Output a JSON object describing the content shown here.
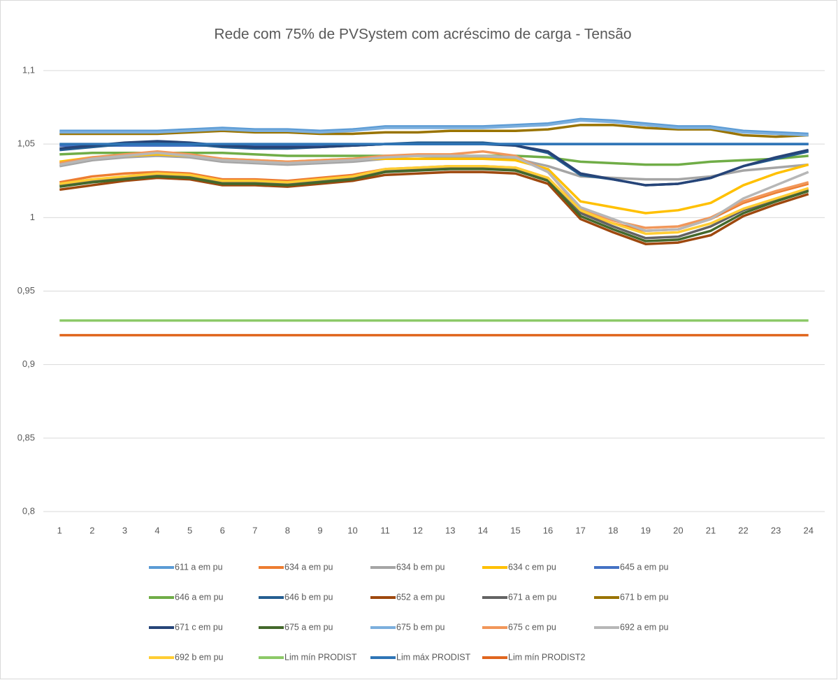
{
  "chart_data": {
    "type": "line",
    "title": "Rede com 75% de PVSystem com acréscimo de carga - Tensão",
    "categories": [
      1,
      2,
      3,
      4,
      5,
      6,
      7,
      8,
      9,
      10,
      11,
      12,
      13,
      14,
      15,
      16,
      17,
      18,
      19,
      20,
      21,
      22,
      23,
      24
    ],
    "ylim": [
      0.8,
      1.1
    ],
    "yticks": [
      {
        "value": 0.8,
        "label": "0,8"
      },
      {
        "value": 0.85,
        "label": "0,85"
      },
      {
        "value": 0.9,
        "label": "0,9"
      },
      {
        "value": 0.95,
        "label": "0,95"
      },
      1,
      {
        "value": 1.05,
        "label": "1,05"
      },
      {
        "value": 1.1,
        "label": "1,1"
      }
    ],
    "grid": true,
    "legend": "bottom",
    "series": [
      {
        "name": "611 a em pu",
        "color": "#5b9bd5",
        "values": [
          1.059,
          1.059,
          1.059,
          1.059,
          1.06,
          1.061,
          1.06,
          1.06,
          1.059,
          1.06,
          1.062,
          1.062,
          1.062,
          1.062,
          1.063,
          1.064,
          1.067,
          1.066,
          1.064,
          1.062,
          1.062,
          1.059,
          1.058,
          1.057
        ]
      },
      {
        "name": "634 a em pu",
        "color": "#ed7d31",
        "values": [
          1.024,
          1.028,
          1.03,
          1.031,
          1.03,
          1.026,
          1.026,
          1.025,
          1.027,
          1.029,
          1.033,
          1.034,
          1.035,
          1.035,
          1.034,
          1.027,
          1.004,
          0.996,
          0.991,
          0.992,
          0.999,
          1.01,
          1.017,
          1.023
        ]
      },
      {
        "name": "634 b em pu",
        "color": "#a5a5a5",
        "values": [
          1.035,
          1.039,
          1.041,
          1.042,
          1.041,
          1.038,
          1.037,
          1.036,
          1.037,
          1.038,
          1.04,
          1.04,
          1.041,
          1.041,
          1.04,
          1.035,
          1.028,
          1.027,
          1.026,
          1.026,
          1.028,
          1.032,
          1.034,
          1.036
        ]
      },
      {
        "name": "634 c em pu",
        "color": "#ffc000",
        "values": [
          1.038,
          1.041,
          1.042,
          1.043,
          1.042,
          1.04,
          1.039,
          1.038,
          1.039,
          1.04,
          1.04,
          1.04,
          1.04,
          1.04,
          1.039,
          1.033,
          1.011,
          1.007,
          1.003,
          1.005,
          1.01,
          1.022,
          1.03,
          1.036
        ]
      },
      {
        "name": "645 a em pu",
        "color": "#4472c4",
        "values": [
          1.049,
          1.049,
          1.049,
          1.049,
          1.049,
          1.049,
          1.049,
          1.049,
          1.049,
          1.049,
          1.05,
          1.05,
          1.05,
          1.05,
          1.05,
          1.05,
          1.05,
          1.05,
          1.05,
          1.05,
          1.05,
          1.05,
          1.05,
          1.05
        ]
      },
      {
        "name": "646 a em pu",
        "color": "#70ad47",
        "values": [
          1.043,
          1.044,
          1.044,
          1.044,
          1.044,
          1.044,
          1.043,
          1.042,
          1.042,
          1.042,
          1.042,
          1.042,
          1.042,
          1.042,
          1.042,
          1.041,
          1.038,
          1.037,
          1.036,
          1.036,
          1.038,
          1.039,
          1.04,
          1.042
        ]
      },
      {
        "name": "646 b em pu",
        "color": "#255e91",
        "values": [
          1.046,
          1.048,
          1.05,
          1.051,
          1.05,
          1.048,
          1.047,
          1.047,
          1.048,
          1.049,
          1.05,
          1.051,
          1.051,
          1.051,
          1.049,
          1.044,
          1.029,
          1.026,
          1.022,
          1.023,
          1.027,
          1.035,
          1.04,
          1.045
        ]
      },
      {
        "name": "652 a em pu",
        "color": "#9e480e",
        "values": [
          1.019,
          1.022,
          1.025,
          1.027,
          1.026,
          1.022,
          1.022,
          1.021,
          1.023,
          1.025,
          1.029,
          1.03,
          1.031,
          1.031,
          1.03,
          1.023,
          0.999,
          0.99,
          0.982,
          0.983,
          0.988,
          1.001,
          1.009,
          1.016
        ]
      },
      {
        "name": "671 a em pu",
        "color": "#636363",
        "values": [
          1.022,
          1.025,
          1.027,
          1.029,
          1.028,
          1.024,
          1.024,
          1.023,
          1.025,
          1.027,
          1.032,
          1.033,
          1.034,
          1.034,
          1.033,
          1.026,
          1.003,
          0.994,
          0.986,
          0.987,
          0.994,
          1.005,
          1.012,
          1.019
        ]
      },
      {
        "name": "671 b em pu",
        "color": "#997300",
        "values": [
          1.057,
          1.057,
          1.057,
          1.057,
          1.058,
          1.059,
          1.058,
          1.058,
          1.057,
          1.057,
          1.058,
          1.058,
          1.059,
          1.059,
          1.059,
          1.06,
          1.063,
          1.063,
          1.061,
          1.06,
          1.06,
          1.056,
          1.055,
          1.056
        ]
      },
      {
        "name": "671 c em pu",
        "color": "#264478",
        "values": [
          1.047,
          1.049,
          1.051,
          1.052,
          1.051,
          1.049,
          1.048,
          1.048,
          1.048,
          1.049,
          1.05,
          1.05,
          1.05,
          1.05,
          1.049,
          1.045,
          1.03,
          1.026,
          1.022,
          1.023,
          1.027,
          1.035,
          1.041,
          1.046
        ]
      },
      {
        "name": "675 a em pu",
        "color": "#43682b",
        "values": [
          1.021,
          1.024,
          1.026,
          1.028,
          1.027,
          1.023,
          1.023,
          1.022,
          1.024,
          1.026,
          1.031,
          1.032,
          1.033,
          1.033,
          1.032,
          1.025,
          1.001,
          0.992,
          0.984,
          0.985,
          0.991,
          1.003,
          1.011,
          1.018
        ]
      },
      {
        "name": "675 b em pu",
        "color": "#7cafdd",
        "values": [
          1.058,
          1.058,
          1.058,
          1.058,
          1.059,
          1.06,
          1.059,
          1.059,
          1.058,
          1.059,
          1.061,
          1.061,
          1.061,
          1.061,
          1.062,
          1.063,
          1.066,
          1.065,
          1.063,
          1.061,
          1.061,
          1.058,
          1.057,
          1.056
        ]
      },
      {
        "name": "675 c em pu",
        "color": "#f1975a",
        "values": [
          1.037,
          1.041,
          1.043,
          1.045,
          1.043,
          1.04,
          1.039,
          1.038,
          1.039,
          1.04,
          1.042,
          1.043,
          1.043,
          1.045,
          1.042,
          1.031,
          1.006,
          0.998,
          0.993,
          0.994,
          1.0,
          1.011,
          1.018,
          1.024
        ]
      },
      {
        "name": "692 a em pu",
        "color": "#b7b7b7",
        "values": [
          1.036,
          1.04,
          1.042,
          1.044,
          1.042,
          1.039,
          1.038,
          1.037,
          1.038,
          1.039,
          1.041,
          1.042,
          1.042,
          1.042,
          1.041,
          1.031,
          1.007,
          0.999,
          0.991,
          0.992,
          0.999,
          1.013,
          1.022,
          1.031
        ]
      },
      {
        "name": "692 b em pu",
        "color": "#ffcd33",
        "values": [
          1.023,
          1.026,
          1.028,
          1.03,
          1.029,
          1.025,
          1.025,
          1.024,
          1.026,
          1.028,
          1.033,
          1.034,
          1.035,
          1.035,
          1.034,
          1.027,
          1.005,
          0.996,
          0.989,
          0.99,
          0.996,
          1.006,
          1.013,
          1.02
        ]
      },
      {
        "name": "Lim mín PRODIST",
        "color": "#8cc968",
        "values": [
          0.93,
          0.93,
          0.93,
          0.93,
          0.93,
          0.93,
          0.93,
          0.93,
          0.93,
          0.93,
          0.93,
          0.93,
          0.93,
          0.93,
          0.93,
          0.93,
          0.93,
          0.93,
          0.93,
          0.93,
          0.93,
          0.93,
          0.93,
          0.93
        ]
      },
      {
        "name": "Lim máx PRODIST",
        "color": "#2e75b6",
        "values": [
          1.05,
          1.05,
          1.05,
          1.05,
          1.05,
          1.05,
          1.05,
          1.05,
          1.05,
          1.05,
          1.05,
          1.05,
          1.05,
          1.05,
          1.05,
          1.05,
          1.05,
          1.05,
          1.05,
          1.05,
          1.05,
          1.05,
          1.05,
          1.05
        ]
      },
      {
        "name": "Lim mín PRODIST2",
        "color": "#e0661e",
        "values": [
          0.92,
          0.92,
          0.92,
          0.92,
          0.92,
          0.92,
          0.92,
          0.92,
          0.92,
          0.92,
          0.92,
          0.92,
          0.92,
          0.92,
          0.92,
          0.92,
          0.92,
          0.92,
          0.92,
          0.92,
          0.92,
          0.92,
          0.92,
          0.92
        ]
      }
    ]
  }
}
